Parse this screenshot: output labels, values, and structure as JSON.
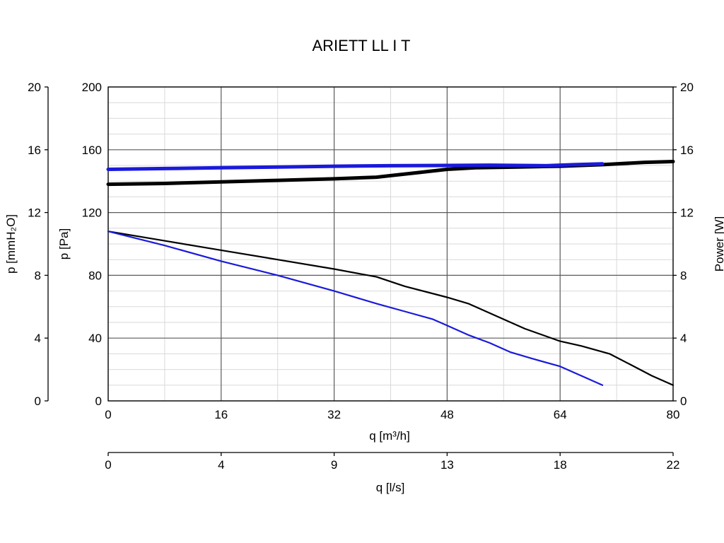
{
  "chart_data": {
    "type": "line",
    "title": "ARIETT LL I T",
    "x_axis": {
      "label": "q [m³/h]",
      "range": [
        0,
        80
      ],
      "ticks": [
        0,
        16,
        32,
        48,
        64,
        80
      ]
    },
    "x2_axis": {
      "label": "q [l/s]",
      "range": [
        0,
        22
      ],
      "tick_labels": [
        "0",
        "4",
        "9",
        "13",
        "18",
        "22"
      ]
    },
    "y_axis": {
      "label": "p [Pa]",
      "range": [
        0,
        200
      ],
      "ticks": [
        0,
        40,
        80,
        120,
        160,
        200
      ]
    },
    "y_outer_axis": {
      "label": "p [mmH₂O]",
      "range": [
        0,
        20
      ],
      "ticks": [
        0,
        4,
        8,
        12,
        16,
        20
      ]
    },
    "y_right_axis": {
      "label": "Power [W]",
      "range": [
        0,
        20
      ],
      "ticks": [
        0,
        4,
        8,
        12,
        16,
        20
      ]
    },
    "grid": true,
    "series": [
      {
        "axis": "pressure",
        "color": "#000000",
        "x": [
          0,
          8,
          16,
          24,
          32,
          38,
          42,
          48,
          51,
          55,
          59,
          64,
          67,
          71,
          74,
          77,
          80
        ],
        "y": [
          108,
          102,
          96,
          90,
          84,
          79,
          73,
          66,
          62,
          54,
          46,
          38,
          35,
          30,
          23,
          16,
          10
        ]
      },
      {
        "axis": "pressure",
        "color": "#1a1adb",
        "x": [
          0,
          8,
          16,
          24,
          32,
          38,
          42,
          46,
          48,
          51,
          54,
          57,
          60,
          64,
          67,
          70
        ],
        "y": [
          108,
          99,
          89,
          80,
          70,
          62,
          57,
          52,
          48,
          42,
          37,
          31,
          27,
          22,
          16,
          10
        ]
      },
      {
        "axis": "power",
        "color": "#000000",
        "x": [
          0,
          8,
          16,
          24,
          32,
          38,
          40,
          44,
          48,
          52,
          58,
          64,
          70,
          76,
          80
        ],
        "y": [
          13.8,
          13.85,
          13.95,
          14.05,
          14.15,
          14.25,
          14.35,
          14.55,
          14.75,
          14.85,
          14.9,
          14.95,
          15.05,
          15.2,
          15.25
        ]
      },
      {
        "axis": "power",
        "color": "#1a1adb",
        "x": [
          0,
          8,
          16,
          24,
          32,
          40,
          48,
          54,
          58,
          62,
          66,
          70
        ],
        "y": [
          14.75,
          14.8,
          14.85,
          14.9,
          14.95,
          14.98,
          15.0,
          15.02,
          15.0,
          14.98,
          15.05,
          15.1
        ]
      }
    ]
  }
}
